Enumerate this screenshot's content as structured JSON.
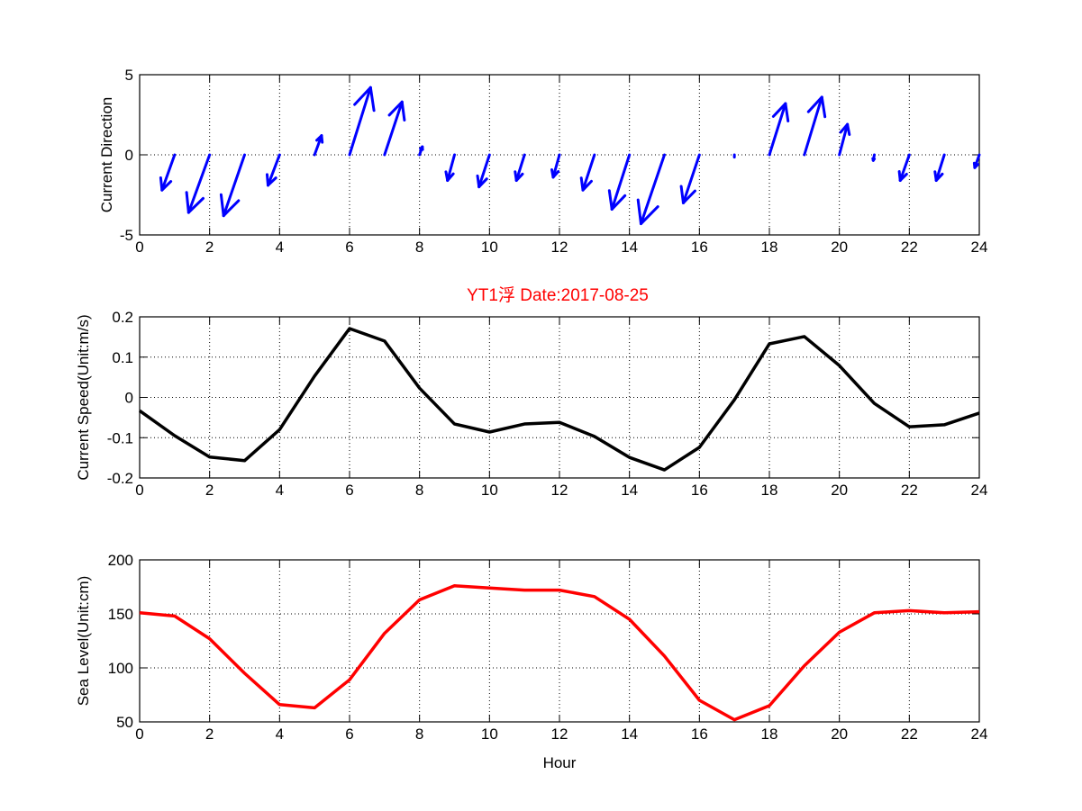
{
  "title": "YT1浮   Date:2017-08-25",
  "colors": {
    "direction": "#0000ff",
    "speed": "#000000",
    "sealevel": "#ff0000",
    "title": "#ff0000"
  },
  "chart_data": [
    {
      "type": "quiver",
      "ylabel": "Current Direction",
      "xlabel": "",
      "xlim": [
        0,
        24
      ],
      "ylim": [
        -5,
        5
      ],
      "xticks": [
        "0",
        "2",
        "4",
        "6",
        "8",
        "10",
        "12",
        "14",
        "16",
        "18",
        "20",
        "22",
        "24"
      ],
      "yticks": [
        "-5",
        "0",
        "5"
      ],
      "grid": true,
      "x": [
        1,
        2,
        3,
        4,
        5,
        6,
        7,
        8,
        9,
        10,
        11,
        12,
        13,
        14,
        15,
        16,
        17,
        18,
        19,
        20,
        21,
        22,
        23,
        24
      ],
      "u": [
        -0.36,
        -0.6,
        -0.6,
        -0.33,
        0.2,
        0.6,
        0.5,
        0.08,
        -0.2,
        -0.3,
        -0.23,
        -0.18,
        -0.33,
        -0.5,
        -0.67,
        -0.46,
        0,
        0.46,
        0.5,
        0.23,
        -0.03,
        -0.26,
        -0.23,
        -0.13
      ],
      "v": [
        -2.2,
        -3.6,
        -3.8,
        -1.9,
        1.2,
        4.2,
        3.3,
        0.5,
        -1.6,
        -2.0,
        -1.6,
        -1.4,
        -2.2,
        -3.4,
        -4.3,
        -3.0,
        -0.15,
        3.2,
        3.6,
        1.9,
        -0.35,
        -1.6,
        -1.6,
        -0.8
      ]
    },
    {
      "type": "line",
      "ylabel": "Current Speed(Unit:m/s)",
      "xlabel": "",
      "xlim": [
        0,
        24
      ],
      "ylim": [
        -0.2,
        0.2
      ],
      "xticks": [
        "0",
        "2",
        "4",
        "6",
        "8",
        "10",
        "12",
        "14",
        "16",
        "18",
        "20",
        "22",
        "24"
      ],
      "yticks": [
        "-0.2",
        "-0.1",
        "0",
        "0.1",
        "0.2"
      ],
      "grid": true,
      "x": [
        0,
        1,
        2,
        3,
        4,
        5,
        6,
        7,
        8,
        9,
        10,
        11,
        12,
        13,
        14,
        15,
        16,
        17,
        18,
        19,
        20,
        21,
        22,
        23,
        24
      ],
      "y": [
        -0.033,
        -0.095,
        -0.148,
        -0.157,
        -0.08,
        0.053,
        0.171,
        0.14,
        0.023,
        -0.066,
        -0.086,
        -0.066,
        -0.062,
        -0.097,
        -0.149,
        -0.18,
        -0.124,
        -0.006,
        0.133,
        0.151,
        0.079,
        -0.015,
        -0.073,
        -0.068,
        -0.039
      ]
    },
    {
      "type": "line",
      "ylabel": "Sea Level(Unit:cm)",
      "xlabel": "Hour",
      "xlim": [
        0,
        24
      ],
      "ylim": [
        50,
        200
      ],
      "xticks": [
        "0",
        "2",
        "4",
        "6",
        "8",
        "10",
        "12",
        "14",
        "16",
        "18",
        "20",
        "22",
        "24"
      ],
      "yticks": [
        "50",
        "100",
        "150",
        "200"
      ],
      "grid": true,
      "x": [
        0,
        1,
        2,
        3,
        4,
        5,
        6,
        7,
        8,
        9,
        10,
        11,
        12,
        13,
        14,
        15,
        16,
        17,
        18,
        19,
        20,
        21,
        22,
        23,
        24
      ],
      "y": [
        151,
        148,
        127,
        95,
        66,
        63,
        89,
        132,
        163,
        176,
        174,
        172,
        172,
        166,
        145,
        111,
        70,
        52,
        65,
        102,
        133,
        151,
        153,
        151,
        152
      ]
    }
  ]
}
